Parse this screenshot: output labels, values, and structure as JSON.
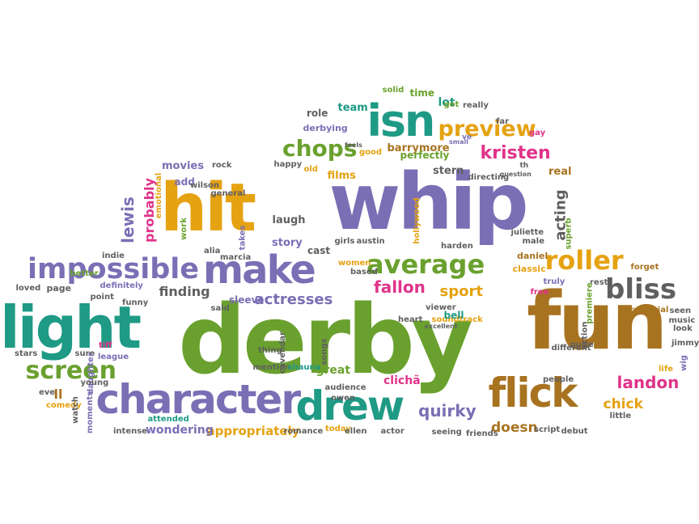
{
  "palette": {
    "green": "#6aa12e",
    "purple": "#7a6fb5",
    "orange": "#e5a211",
    "teal": "#1e9a85",
    "brown": "#a87320",
    "pink": "#e0338a",
    "gray": "#5f5f5f",
    "tan": "#c79a3d"
  },
  "words": [
    {
      "text": "derby",
      "color": "green",
      "rotate": 0
    },
    {
      "text": "whip",
      "color": "purple",
      "rotate": 0
    },
    {
      "text": "fun",
      "color": "brown",
      "rotate": 0
    },
    {
      "text": "hit",
      "color": "orange",
      "rotate": 0
    },
    {
      "text": "light",
      "color": "teal",
      "rotate": 0
    },
    {
      "text": "character",
      "color": "purple",
      "rotate": 0
    },
    {
      "text": "drew",
      "color": "teal",
      "rotate": 0
    },
    {
      "text": "flick",
      "color": "brown",
      "rotate": 0
    },
    {
      "text": "make",
      "color": "purple",
      "rotate": 0
    },
    {
      "text": "isn",
      "color": "teal",
      "rotate": 0
    },
    {
      "text": "impossible",
      "color": "purple",
      "rotate": 0
    },
    {
      "text": "average",
      "color": "green",
      "rotate": 0
    },
    {
      "text": "roller",
      "color": "orange",
      "rotate": 0
    },
    {
      "text": "bliss",
      "color": "gray",
      "rotate": 0
    },
    {
      "text": "preview",
      "color": "orange",
      "rotate": 0
    },
    {
      "text": "chops",
      "color": "green",
      "rotate": 0
    },
    {
      "text": "screen",
      "color": "green",
      "rotate": 0
    },
    {
      "text": "kristen",
      "color": "pink",
      "rotate": 0
    },
    {
      "text": "lewis",
      "color": "purple",
      "rotate": -90
    },
    {
      "text": "probably",
      "color": "pink",
      "rotate": -90
    },
    {
      "text": "acting",
      "color": "gray",
      "rotate": -90
    },
    {
      "text": "landon",
      "color": "pink",
      "rotate": 0
    },
    {
      "text": "quirky",
      "color": "purple",
      "rotate": 0
    },
    {
      "text": "fallon",
      "color": "pink",
      "rotate": 0
    },
    {
      "text": "sport",
      "color": "orange",
      "rotate": 0
    },
    {
      "text": "actresses",
      "color": "purple",
      "rotate": 0
    },
    {
      "text": "finding",
      "color": "gray",
      "rotate": 0
    },
    {
      "text": "chick",
      "color": "orange",
      "rotate": 0
    },
    {
      "text": "doesn",
      "color": "brown",
      "rotate": 0
    },
    {
      "text": "ll",
      "color": "brown",
      "rotate": 0
    },
    {
      "text": "appropriately",
      "color": "orange",
      "rotate": 0
    },
    {
      "text": "wondering",
      "color": "purple",
      "rotate": 0
    },
    {
      "text": "clichã",
      "color": "pink",
      "rotate": 0
    },
    {
      "text": "great",
      "color": "green",
      "rotate": 0
    },
    {
      "text": "laugh",
      "color": "gray",
      "rotate": 0
    },
    {
      "text": "story",
      "color": "purple",
      "rotate": 0
    },
    {
      "text": "cast",
      "color": "gray",
      "rotate": 0
    },
    {
      "text": "stern",
      "color": "gray",
      "rotate": 0
    },
    {
      "text": "real",
      "color": "brown",
      "rotate": 0
    },
    {
      "text": "movies",
      "color": "purple",
      "rotate": 0
    },
    {
      "text": "films",
      "color": "orange",
      "rotate": 0
    },
    {
      "text": "barrymore",
      "color": "brown",
      "rotate": 0
    },
    {
      "text": "perfectly",
      "color": "green",
      "rotate": 0
    },
    {
      "text": "lot",
      "color": "teal",
      "rotate": 0
    },
    {
      "text": "team",
      "color": "teal",
      "rotate": 0
    },
    {
      "text": "role",
      "color": "gray",
      "rotate": 0
    },
    {
      "text": "derbying",
      "color": "purple",
      "rotate": 0
    },
    {
      "text": "time",
      "color": "green",
      "rotate": 0
    },
    {
      "text": "solid",
      "color": "green",
      "rotate": 0
    },
    {
      "text": "got",
      "color": "green",
      "rotate": 0
    },
    {
      "text": "really",
      "color": "gray",
      "rotate": 0
    },
    {
      "text": "add",
      "color": "purple",
      "rotate": 0
    },
    {
      "text": "general",
      "color": "gray",
      "rotate": 0
    },
    {
      "text": "wilson",
      "color": "gray",
      "rotate": 0
    },
    {
      "text": "rock",
      "color": "gray",
      "rotate": 0
    },
    {
      "text": "happy",
      "color": "gray",
      "rotate": 0
    },
    {
      "text": "old",
      "color": "orange",
      "rotate": 0
    },
    {
      "text": "good",
      "color": "orange",
      "rotate": 0
    },
    {
      "text": "directing",
      "color": "gray",
      "rotate": 0
    },
    {
      "text": "question",
      "color": "gray",
      "rotate": 0
    },
    {
      "text": "feels",
      "color": "gray",
      "rotate": 0
    },
    {
      "text": "th",
      "color": "gray",
      "rotate": 0
    },
    {
      "text": "small",
      "color": "purple",
      "rotate": 0
    },
    {
      "text": "ve",
      "color": "purple",
      "rotate": 0
    },
    {
      "text": "far",
      "color": "gray",
      "rotate": 0
    },
    {
      "text": "gay",
      "color": "pink",
      "rotate": 0
    },
    {
      "text": "emotional",
      "color": "orange",
      "rotate": -90
    },
    {
      "text": "work",
      "color": "green",
      "rotate": -90
    },
    {
      "text": "takes",
      "color": "purple",
      "rotate": -90
    },
    {
      "text": "hollywood",
      "color": "orange",
      "rotate": -90
    },
    {
      "text": "alia",
      "color": "gray",
      "rotate": 0
    },
    {
      "text": "marcia",
      "color": "gray",
      "rotate": 0
    },
    {
      "text": "girls",
      "color": "gray",
      "rotate": 0
    },
    {
      "text": "austin",
      "color": "gray",
      "rotate": 0
    },
    {
      "text": "harden",
      "color": "gray",
      "rotate": 0
    },
    {
      "text": "women",
      "color": "orange",
      "rotate": 0
    },
    {
      "text": "based",
      "color": "gray",
      "rotate": 0
    },
    {
      "text": "juliette",
      "color": "gray",
      "rotate": 0
    },
    {
      "text": "male",
      "color": "gray",
      "rotate": 0
    },
    {
      "text": "superb",
      "color": "green",
      "rotate": -90
    },
    {
      "text": "daniel",
      "color": "brown",
      "rotate": 0
    },
    {
      "text": "classic",
      "color": "orange",
      "rotate": 0
    },
    {
      "text": "forget",
      "color": "brown",
      "rotate": 0
    },
    {
      "text": "truly",
      "color": "purple",
      "rotate": 0
    },
    {
      "text": "rest",
      "color": "gray",
      "rotate": 0
    },
    {
      "text": "free",
      "color": "pink",
      "rotate": 0
    },
    {
      "text": "premiere",
      "color": "green",
      "rotate": -90
    },
    {
      "text": "indie",
      "color": "gray",
      "rotate": 0
    },
    {
      "text": "better",
      "color": "green",
      "rotate": 0
    },
    {
      "text": "page",
      "color": "gray",
      "rotate": 0
    },
    {
      "text": "definitely",
      "color": "purple",
      "rotate": 0
    },
    {
      "text": "loved",
      "color": "gray",
      "rotate": 0
    },
    {
      "text": "point",
      "color": "gray",
      "rotate": 0
    },
    {
      "text": "funny",
      "color": "gray",
      "rotate": 0
    },
    {
      "text": "said",
      "color": "gray",
      "rotate": 0
    },
    {
      "text": "sleeve",
      "color": "purple",
      "rotate": 0
    },
    {
      "text": "heart",
      "color": "gray",
      "rotate": 0
    },
    {
      "text": "soundtrack",
      "color": "orange",
      "rotate": 0
    },
    {
      "text": "viewer",
      "color": "gray",
      "rotate": 0
    },
    {
      "text": "bell",
      "color": "teal",
      "rotate": 0
    },
    {
      "text": "excellent",
      "color": "gray",
      "rotate": 0
    },
    {
      "text": "directorial",
      "color": "brown",
      "rotate": 0
    },
    {
      "text": "seen",
      "color": "gray",
      "rotate": 0
    },
    {
      "text": "music",
      "color": "gray",
      "rotate": 0
    },
    {
      "text": "look",
      "color": "gray",
      "rotate": 0
    },
    {
      "text": "jimmy",
      "color": "gray",
      "rotate": 0
    },
    {
      "text": "life",
      "color": "orange",
      "rotate": 0
    },
    {
      "text": "wig",
      "color": "purple",
      "rotate": -90
    },
    {
      "text": "stars",
      "color": "gray",
      "rotate": 0
    },
    {
      "text": "sure",
      "color": "gray",
      "rotate": 0
    },
    {
      "text": "tiff",
      "color": "pink",
      "rotate": 0
    },
    {
      "text": "league",
      "color": "purple",
      "rotate": 0
    },
    {
      "text": "daughter",
      "color": "purple",
      "rotate": -90
    },
    {
      "text": "young",
      "color": "gray",
      "rotate": 0
    },
    {
      "text": "thing",
      "color": "gray",
      "rotate": 0
    },
    {
      "text": "mention",
      "color": "gray",
      "rotate": 0
    },
    {
      "text": "shauna",
      "color": "teal",
      "rotate": 0
    },
    {
      "text": "cavendar",
      "color": "gray",
      "rotate": -90
    },
    {
      "text": "songs",
      "color": "gray",
      "rotate": -90
    },
    {
      "text": "audience",
      "color": "gray",
      "rotate": 0
    },
    {
      "text": "owen",
      "color": "gray",
      "rotate": 0
    },
    {
      "text": "action",
      "color": "gray",
      "rotate": -90
    },
    {
      "text": "different",
      "color": "gray",
      "rotate": 0
    },
    {
      "text": "quite",
      "color": "gray",
      "rotate": 0
    },
    {
      "text": "people",
      "color": "gray",
      "rotate": 0
    },
    {
      "text": "little",
      "color": "gray",
      "rotate": 0
    },
    {
      "text": "eve",
      "color": "gray",
      "rotate": 0
    },
    {
      "text": "comedy",
      "color": "orange",
      "rotate": 0
    },
    {
      "text": "watch",
      "color": "gray",
      "rotate": -90
    },
    {
      "text": "moments",
      "color": "purple",
      "rotate": -90
    },
    {
      "text": "intense",
      "color": "gray",
      "rotate": 0
    },
    {
      "text": "attended",
      "color": "teal",
      "rotate": 0
    },
    {
      "text": "romance",
      "color": "gray",
      "rotate": 0
    },
    {
      "text": "today",
      "color": "orange",
      "rotate": 0
    },
    {
      "text": "ellen",
      "color": "gray",
      "rotate": 0
    },
    {
      "text": "actor",
      "color": "gray",
      "rotate": 0
    },
    {
      "text": "seeing",
      "color": "gray",
      "rotate": 0
    },
    {
      "text": "friends",
      "color": "gray",
      "rotate": 0
    },
    {
      "text": "script",
      "color": "gray",
      "rotate": 0
    },
    {
      "text": "debut",
      "color": "gray",
      "rotate": 0
    }
  ]
}
